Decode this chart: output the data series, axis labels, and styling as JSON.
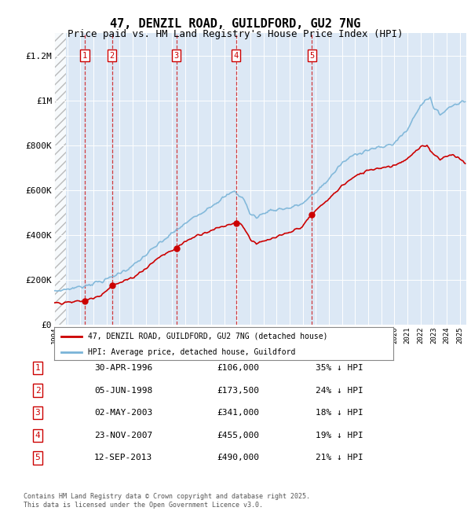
{
  "title": "47, DENZIL ROAD, GUILDFORD, GU2 7NG",
  "subtitle": "Price paid vs. HM Land Registry's House Price Index (HPI)",
  "title_fontsize": 11,
  "subtitle_fontsize": 9,
  "ylabel_ticks": [
    "£0",
    "£200K",
    "£400K",
    "£600K",
    "£800K",
    "£1M",
    "£1.2M"
  ],
  "ytick_values": [
    0,
    200000,
    400000,
    600000,
    800000,
    1000000,
    1200000
  ],
  "ylim": [
    0,
    1300000
  ],
  "xlim_start": 1994.0,
  "xlim_end": 2025.5,
  "hpi_color": "#7ab4d8",
  "price_color": "#cc0000",
  "background_color": "#dce8f5",
  "grid_color": "#ffffff",
  "transactions": [
    {
      "num": 1,
      "date": "30-APR-1996",
      "price": 106000,
      "year": 1996.33,
      "pct": "35% ↓ HPI"
    },
    {
      "num": 2,
      "date": "05-JUN-1998",
      "price": 173500,
      "year": 1998.42,
      "pct": "24% ↓ HPI"
    },
    {
      "num": 3,
      "date": "02-MAY-2003",
      "price": 341000,
      "year": 2003.33,
      "pct": "18% ↓ HPI"
    },
    {
      "num": 4,
      "date": "23-NOV-2007",
      "price": 455000,
      "year": 2007.9,
      "pct": "19% ↓ HPI"
    },
    {
      "num": 5,
      "date": "12-SEP-2013",
      "price": 490000,
      "year": 2013.7,
      "pct": "21% ↓ HPI"
    }
  ],
  "legend_label_price": "47, DENZIL ROAD, GUILDFORD, GU2 7NG (detached house)",
  "legend_label_hpi": "HPI: Average price, detached house, Guildford",
  "footer": "Contains HM Land Registry data © Crown copyright and database right 2025.\nThis data is licensed under the Open Government Licence v3.0.",
  "table_rows": [
    [
      "1",
      "30-APR-1996",
      "£106,000",
      "35% ↓ HPI"
    ],
    [
      "2",
      "05-JUN-1998",
      "£173,500",
      "24% ↓ HPI"
    ],
    [
      "3",
      "02-MAY-2003",
      "£341,000",
      "18% ↓ HPI"
    ],
    [
      "4",
      "23-NOV-2007",
      "£455,000",
      "19% ↓ HPI"
    ],
    [
      "5",
      "12-SEP-2013",
      "£490,000",
      "21% ↓ HPI"
    ]
  ]
}
